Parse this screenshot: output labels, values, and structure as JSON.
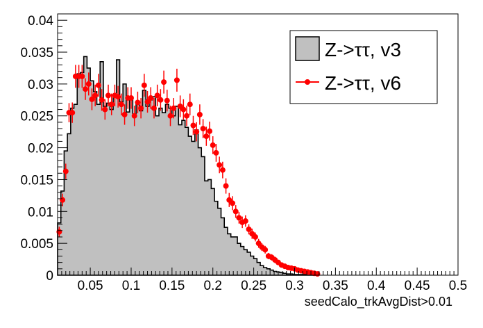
{
  "chart_data": {
    "type": "histogram",
    "xlabel": "seedCalo_trkAvgDist>0.01",
    "ylabel": "",
    "xlim": [
      0.01,
      0.5
    ],
    "ylim": [
      0,
      0.041
    ],
    "grid": false,
    "legend_placement": "top-right",
    "x_ticks": [
      "0.05",
      "0.1",
      "0.15",
      "0.2",
      "0.25",
      "0.3",
      "0.35",
      "0.4",
      "0.45",
      "0.5"
    ],
    "y_ticks": [
      "0",
      "0.005",
      "0.01",
      "0.015",
      "0.02",
      "0.025",
      "0.03",
      "0.035",
      "0.04"
    ],
    "bin_edges_start": 0.01,
    "bin_width": 0.004,
    "series": [
      {
        "name": "Z->ττ, v3",
        "style": "filled-histogram",
        "fill": "#c0c0c0",
        "line": "#000000",
        "values": [
          0.0082,
          0.0132,
          0.0195,
          0.0222,
          0.0262,
          0.0268,
          0.0316,
          0.0318,
          0.0343,
          0.0325,
          0.0305,
          0.0288,
          0.0268,
          0.0335,
          0.0265,
          0.027,
          0.026,
          0.0282,
          0.0338,
          0.0272,
          0.03,
          0.0256,
          0.028,
          0.0252,
          0.027,
          0.0258,
          0.029,
          0.0265,
          0.0275,
          0.028,
          0.025,
          0.0262,
          0.0255,
          0.0268,
          0.0262,
          0.025,
          0.0265,
          0.0236,
          0.0243,
          0.0232,
          0.0218,
          0.021,
          0.0228,
          0.02,
          0.0186,
          0.0148,
          0.015,
          0.0136,
          0.0116,
          0.0105,
          0.009,
          0.0075,
          0.0065,
          0.006,
          0.006,
          0.005,
          0.0045,
          0.004,
          0.0036,
          0.003,
          0.0026,
          0.002,
          0.0015,
          0.0012,
          0.001,
          0.0008,
          0.0006,
          0.0005,
          0.0004,
          0.0003,
          0.0002,
          0.0002,
          0.0001,
          0.0001,
          0.0001,
          0.0001,
          0.0,
          0.0001,
          0.0,
          0.0
        ]
      },
      {
        "name": "Z->ττ, v6",
        "style": "markers-with-errors",
        "color": "#ff0000",
        "values": [
          0.0068,
          0.0118,
          0.0163,
          0.0255,
          0.0255,
          0.0312,
          0.0312,
          0.0312,
          0.0292,
          0.03,
          0.0276,
          0.0282,
          0.0298,
          0.0275,
          0.026,
          0.0282,
          0.0268,
          0.0282,
          0.028,
          0.0268,
          0.0252,
          0.0278,
          0.0278,
          0.025,
          0.0271,
          0.0262,
          0.0298,
          0.0272,
          0.0278,
          0.0262,
          0.0282,
          0.0275,
          0.0303,
          0.0274,
          0.025,
          0.0262,
          0.0306,
          0.0265,
          0.026,
          0.025,
          0.0268,
          0.0235,
          0.0225,
          0.0252,
          0.023,
          0.0218,
          0.0226,
          0.0204,
          0.0192,
          0.0173,
          0.0165,
          0.014,
          0.0118,
          0.0113,
          0.01,
          0.009,
          0.0083,
          0.0085,
          0.0072,
          0.0065,
          0.006,
          0.005,
          0.0044,
          0.004,
          0.003,
          0.0028,
          0.0024,
          0.002,
          0.0016,
          0.0014,
          0.0012,
          0.0011,
          0.001,
          0.0008,
          0.0007,
          0.0006,
          0.0005,
          0.0004,
          0.0003,
          0.0002
        ],
        "errors": [
          0.0008,
          0.001,
          0.0012,
          0.0015,
          0.0016,
          0.0018,
          0.0018,
          0.0018,
          0.0017,
          0.0018,
          0.0017,
          0.0017,
          0.0018,
          0.0017,
          0.0016,
          0.0017,
          0.0017,
          0.0017,
          0.0017,
          0.0017,
          0.0016,
          0.0017,
          0.0017,
          0.0016,
          0.0017,
          0.0016,
          0.0018,
          0.0017,
          0.0017,
          0.0016,
          0.0017,
          0.0017,
          0.0018,
          0.0017,
          0.0016,
          0.0016,
          0.0018,
          0.0017,
          0.0016,
          0.0016,
          0.0017,
          0.0015,
          0.0015,
          0.0016,
          0.0015,
          0.0015,
          0.0015,
          0.0014,
          0.0014,
          0.0013,
          0.0013,
          0.0012,
          0.0011,
          0.0011,
          0.001,
          0.0009,
          0.0009,
          0.0009,
          0.0008,
          0.0008,
          0.0007,
          0.0007,
          0.0006,
          0.0006,
          0.0005,
          0.0005,
          0.0005,
          0.0004,
          0.0004,
          0.0004,
          0.0003,
          0.0003,
          0.0003,
          0.0003,
          0.0003,
          0.0002,
          0.0002,
          0.0002,
          0.0002,
          0.0001
        ]
      }
    ]
  }
}
